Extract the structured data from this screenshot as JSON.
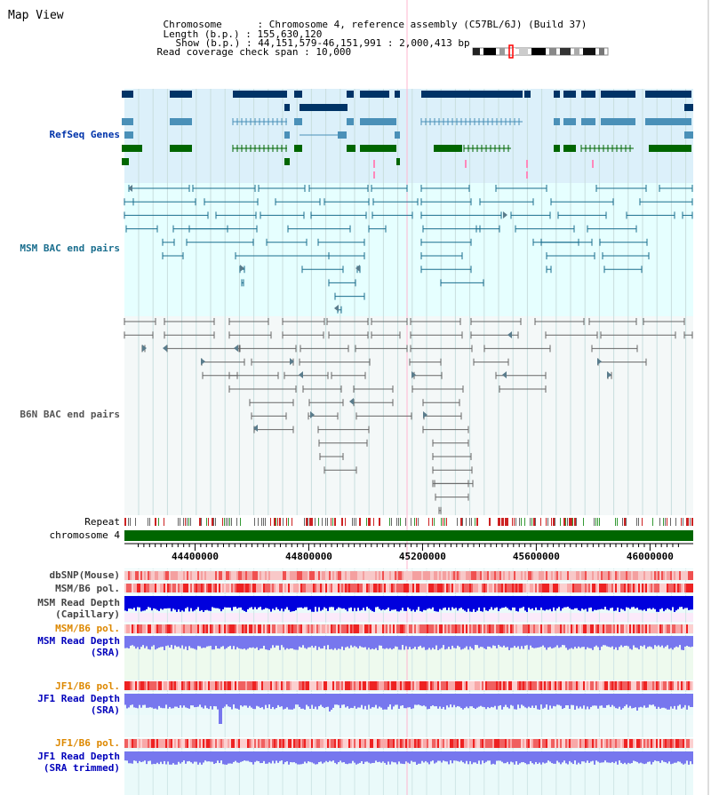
{
  "page": {
    "title": "Map View"
  },
  "info": {
    "chromosome_label": "Chromosome",
    "chromosome_value": "Chromosome 4, reference assembly (C57BL/6J) (Build 37)",
    "length_label": "Length (b.p.)",
    "length_value": "155,630,120",
    "show_label": "Show (b.p.)",
    "show_value": "44,151,579-46,151,991 : 2,000,413 bp",
    "coverage_label": "Read coverage check span",
    "coverage_value": "10,000"
  },
  "tracks": {
    "refseq": "RefSeq Genes",
    "msm_bac": "MSM BAC end pairs",
    "b6n_bac": "B6N BAC end pairs",
    "repeat": "Repeat",
    "chromosome": "chromosome 4",
    "dbsnp": "dbSNP(Mouse)",
    "msm_pol_1": "MSM/B6 pol.",
    "msm_depth_cap_1": "MSM Read Depth",
    "msm_depth_cap_2": "(Capillary)",
    "msm_pol_2": "MSM/B6 pol.",
    "msm_depth_sra_1": "MSM Read Depth",
    "msm_depth_sra_2": "(SRA)",
    "jf1_pol_1": "JF1/B6 pol.",
    "jf1_depth_sra_1": "JF1 Read Depth",
    "jf1_depth_sra_2": "(SRA)",
    "jf1_pol_2": "JF1/B6 pol.",
    "jf1_depth_trim_1": "JF1 Read Depth",
    "jf1_depth_trim_2": "(SRA trimmed)"
  },
  "axis": {
    "start": 44151579,
    "end": 46151991,
    "ticks": [
      "44400000",
      "44800000",
      "45200000",
      "45600000",
      "46000000"
    ]
  },
  "colors": {
    "refseq_bg": "#dcf0fa",
    "msm_bg": "#e6ffff",
    "b6n_bg": "#f4f8f8",
    "gene_dark": "#003366",
    "gene_mid": "#4a90b8",
    "gene_green": "#006600",
    "chromosome": "#006600",
    "depth_blue": "#0000dd",
    "depth_light": "#7777ee",
    "pol_red": "#ee2222"
  }
}
